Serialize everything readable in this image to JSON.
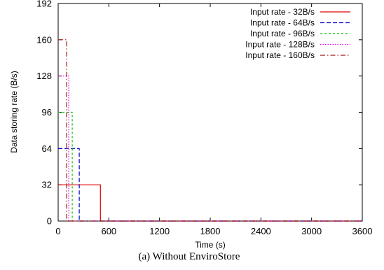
{
  "chart_data": {
    "type": "line",
    "title": "",
    "xlabel": "Time (s)",
    "ylabel": "Data storing rate (B/s)",
    "xlim": [
      0,
      3600
    ],
    "ylim": [
      0,
      192
    ],
    "xticks": [
      0,
      600,
      1200,
      1800,
      2400,
      3000,
      3600
    ],
    "yticks": [
      0,
      32,
      64,
      96,
      128,
      160,
      192
    ],
    "grid": false,
    "legend_position": "top-right",
    "series": [
      {
        "name": "Input rate - 32B/s",
        "color": "#e00000",
        "dash": "solid",
        "x": [
          0,
          500,
          500,
          3600
        ],
        "y": [
          32,
          32,
          0,
          0
        ]
      },
      {
        "name": "Input rate - 64B/s",
        "color": "#0000d0",
        "dash": "dashed",
        "x": [
          0,
          250,
          250,
          3600
        ],
        "y": [
          64,
          64,
          0,
          0
        ]
      },
      {
        "name": "Input rate - 96B/s",
        "color": "#00c000",
        "dash": "dotted-short",
        "x": [
          0,
          167,
          167,
          3600
        ],
        "y": [
          96,
          96,
          0,
          0
        ]
      },
      {
        "name": "Input rate - 128B/s",
        "color": "#e000e0",
        "dash": "dotted",
        "x": [
          0,
          125,
          125,
          3600
        ],
        "y": [
          128,
          128,
          0,
          0
        ]
      },
      {
        "name": "Input rate - 160B/s",
        "color": "#a01818",
        "dash": "dash-dot",
        "x": [
          0,
          100,
          100,
          3600
        ],
        "y": [
          160,
          160,
          0,
          0
        ]
      }
    ]
  },
  "caption": "(a)  Without EnviroStore"
}
